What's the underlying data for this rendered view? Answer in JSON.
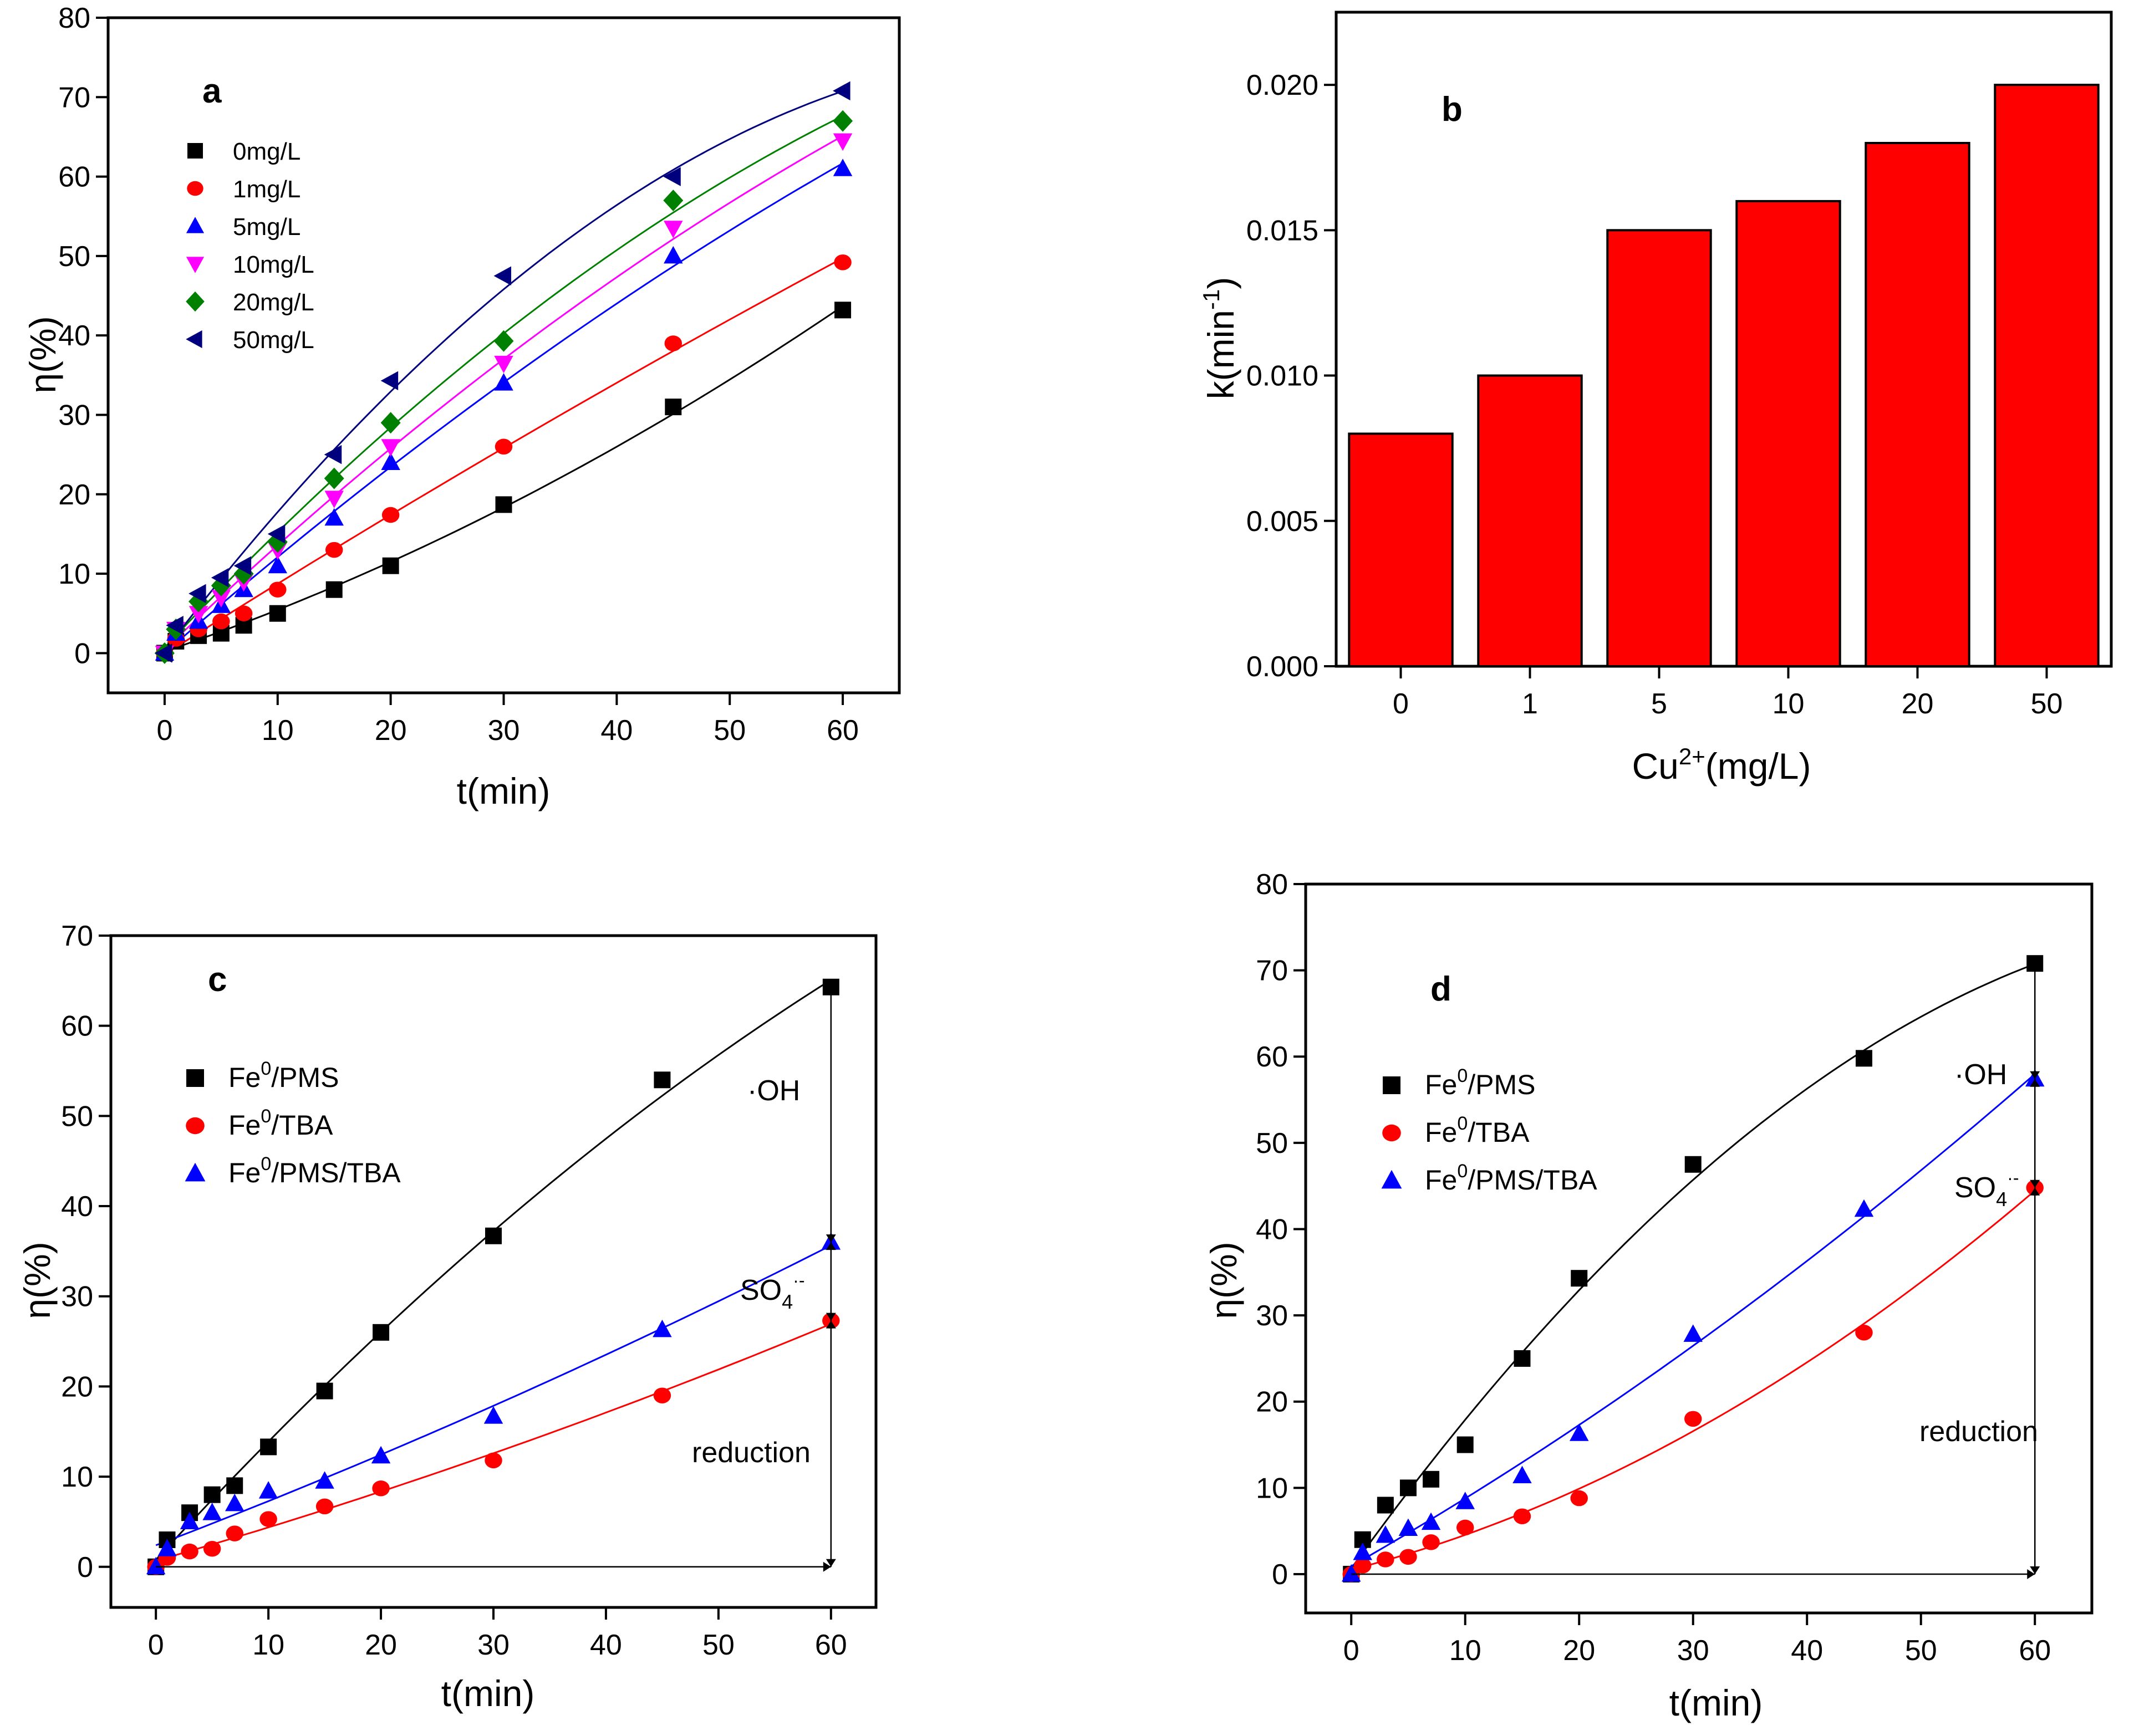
{
  "colors": {
    "black": "#000000",
    "red": "#ff0000",
    "blue": "#0000ff",
    "magenta": "#ff00ff",
    "green": "#008000",
    "navy": "#00007f",
    "bar_fill": "#ff0000"
  },
  "chart_data": [
    {
      "id": "a",
      "type": "scatter",
      "panel_label": "a",
      "xlabel": "t(min)",
      "ylabel": "η(%)",
      "xlim": [
        -5,
        65
      ],
      "ylim": [
        -5,
        80
      ],
      "xticks": [
        0,
        10,
        20,
        30,
        40,
        50,
        60
      ],
      "yticks": [
        0,
        10,
        20,
        30,
        40,
        50,
        60,
        70,
        80
      ],
      "legend_position": "top-left",
      "x": [
        0,
        1,
        3,
        5,
        7,
        10,
        15,
        20,
        30,
        45,
        60
      ],
      "series": [
        {
          "name": "0mg/L",
          "marker": "square",
          "color": "#000000",
          "values": [
            0,
            1.5,
            2.2,
            2.5,
            3.5,
            5,
            8,
            11,
            18.7,
            31,
            43.2
          ]
        },
        {
          "name": "1mg/L",
          "marker": "circle",
          "color": "#ff0000",
          "values": [
            0,
            1.8,
            3,
            4,
            5,
            8,
            13,
            17.4,
            26,
            39,
            49.2
          ]
        },
        {
          "name": "5mg/L",
          "marker": "triangle-up",
          "color": "#0000ff",
          "values": [
            0,
            2.5,
            4,
            6,
            8,
            11,
            17,
            24,
            34,
            50,
            61
          ]
        },
        {
          "name": "10mg/L",
          "marker": "triangle-down",
          "color": "#ff00ff",
          "values": [
            0,
            3,
            5,
            7,
            9,
            13,
            19.5,
            26,
            36.5,
            53.5,
            64.5
          ]
        },
        {
          "name": "20mg/L",
          "marker": "diamond",
          "color": "#008000",
          "values": [
            0,
            3,
            6.5,
            8.5,
            10,
            14,
            22,
            29,
            39.3,
            57,
            67
          ]
        },
        {
          "name": "50mg/L",
          "marker": "triangle-left",
          "color": "#00007f",
          "values": [
            0,
            3.5,
            7.5,
            9.5,
            11,
            15,
            25,
            34.3,
            47.5,
            60,
            70.8
          ]
        }
      ]
    },
    {
      "id": "b",
      "type": "bar",
      "panel_label": "b",
      "xlabel_base": "Cu",
      "xlabel_sup": "2+",
      "xlabel_tail": "(mg/L)",
      "ylabel_base": "k(min",
      "ylabel_sup": "-1",
      "ylabel_tail": ")",
      "categories": [
        "0",
        "1",
        "5",
        "10",
        "20",
        "50"
      ],
      "values": [
        0.008,
        0.01,
        0.015,
        0.016,
        0.018,
        0.02
      ],
      "ylim": [
        0,
        0.0225
      ],
      "yticks": [
        "0.000",
        "0.005",
        "0.010",
        "0.015",
        "0.020"
      ]
    },
    {
      "id": "c",
      "type": "scatter",
      "panel_label": "c",
      "xlabel": "t(min)",
      "ylabel": "η(%)",
      "xlim": [
        -4,
        64
      ],
      "ylim": [
        -4.5,
        70
      ],
      "xticks": [
        0,
        10,
        20,
        30,
        40,
        50,
        60
      ],
      "yticks": [
        0,
        10,
        20,
        30,
        40,
        50,
        60,
        70
      ],
      "legend_position": "top-left",
      "x": [
        0,
        1,
        3,
        5,
        7,
        10,
        15,
        20,
        30,
        45,
        60
      ],
      "series": [
        {
          "name_base": "Fe",
          "name_sup": "0",
          "name_tail": "/PMS",
          "marker": "square",
          "color": "#000000",
          "values": [
            0,
            3,
            6,
            8,
            9,
            13.3,
            19.5,
            26,
            36.7,
            54,
            64.3
          ]
        },
        {
          "name_base": "Fe",
          "name_sup": "0",
          "name_tail": "/TBA",
          "marker": "circle",
          "color": "#ff0000",
          "values": [
            0,
            1,
            1.7,
            2,
            3.7,
            5.3,
            6.7,
            8.7,
            11.8,
            19,
            27.3
          ]
        },
        {
          "name_base": "Fe",
          "name_sup": "0",
          "name_tail": "/PMS/TBA",
          "marker": "triangle-up",
          "color": "#0000ff",
          "values": [
            0,
            2,
            5,
            6,
            7,
            8.4,
            9.5,
            12.3,
            16.7,
            26.3,
            36
          ]
        }
      ],
      "annotations": {
        "oh": "·OH",
        "so4_base": "SO",
        "so4_sub": "4",
        "so4_sup": "·-",
        "reduction": "reduction"
      }
    },
    {
      "id": "d",
      "type": "scatter",
      "panel_label": "d",
      "xlabel": "t(min)",
      "ylabel": "η(%)",
      "xlim": [
        -4,
        65
      ],
      "ylim": [
        -4.5,
        80
      ],
      "xticks": [
        0,
        10,
        20,
        30,
        40,
        50,
        60
      ],
      "yticks": [
        0,
        10,
        20,
        30,
        40,
        50,
        60,
        70,
        80
      ],
      "legend_position": "top-left",
      "x": [
        0,
        1,
        3,
        5,
        7,
        10,
        15,
        20,
        30,
        45,
        60
      ],
      "series": [
        {
          "name_base": "Fe",
          "name_sup": "0",
          "name_tail": "/PMS",
          "marker": "square",
          "color": "#000000",
          "values": [
            0,
            4,
            8,
            10,
            11,
            15,
            25,
            34.3,
            47.5,
            59.8,
            70.8
          ]
        },
        {
          "name_base": "Fe",
          "name_sup": "0",
          "name_tail": "/TBA",
          "marker": "circle",
          "color": "#ff0000",
          "values": [
            0,
            1,
            1.7,
            2,
            3.7,
            5.4,
            6.7,
            8.8,
            18,
            28,
            44.8
          ]
        },
        {
          "name_base": "Fe",
          "name_sup": "0",
          "name_tail": "/PMS/TBA",
          "marker": "triangle-up",
          "color": "#0000ff",
          "values": [
            0,
            2.5,
            4.5,
            5.3,
            6,
            8.4,
            11.4,
            16.3,
            27.8,
            42.3,
            57.4
          ]
        }
      ],
      "annotations": {
        "oh": "·OH",
        "so4_base": "SO",
        "so4_sub": "4",
        "so4_sup": "·-",
        "reduction": "reduction"
      }
    }
  ]
}
